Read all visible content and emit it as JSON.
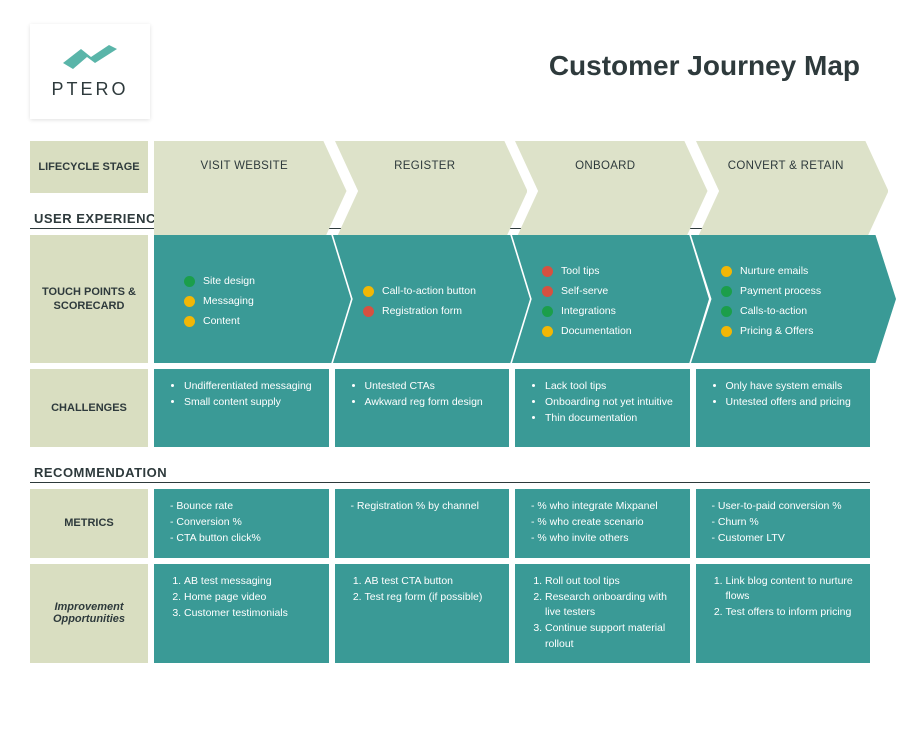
{
  "colors": {
    "bg": "#ffffff",
    "text": "#2e3a3c",
    "label_bg": "#d9dec1",
    "stage_bg": "#dde2c9",
    "teal": "#3a9a96",
    "teal_dark": "#2f8682",
    "dot_green": "#1b9e4b",
    "dot_yellow": "#f2b705",
    "dot_red": "#d65141",
    "logo_teal": "#5ab5a9"
  },
  "logo_text": "PTERO",
  "title": "Customer Journey Map",
  "lifecycle_label": "LIFECYCLE STAGE",
  "stages": [
    "VISIT WEBSITE",
    "REGISTER",
    "ONBOARD",
    "CONVERT & RETAIN"
  ],
  "sections": {
    "ux": "USER EXPERIENCE",
    "rec": "RECOMMENDATION"
  },
  "touchpoints": {
    "label": "TOUCH POINTS & SCORECARD",
    "cols": [
      [
        {
          "c": "green",
          "t": "Site design"
        },
        {
          "c": "yellow",
          "t": "Messaging"
        },
        {
          "c": "yellow",
          "t": "Content"
        }
      ],
      [
        {
          "c": "yellow",
          "t": "Call-to-action button"
        },
        {
          "c": "red",
          "t": "Registration form"
        }
      ],
      [
        {
          "c": "red",
          "t": "Tool tips"
        },
        {
          "c": "red",
          "t": "Self-serve"
        },
        {
          "c": "green",
          "t": "Integrations"
        },
        {
          "c": "yellow",
          "t": "Documentation"
        }
      ],
      [
        {
          "c": "yellow",
          "t": "Nurture emails"
        },
        {
          "c": "green",
          "t": "Payment process"
        },
        {
          "c": "green",
          "t": "Calls-to-action"
        },
        {
          "c": "yellow",
          "t": "Pricing & Offers"
        }
      ]
    ]
  },
  "challenges": {
    "label": "CHALLENGES",
    "cols": [
      [
        "Undifferentiated messaging",
        "Small content supply"
      ],
      [
        "Untested CTAs",
        "Awkward reg form design"
      ],
      [
        "Lack tool tips",
        "Onboarding not yet intuitive",
        "Thin documentation"
      ],
      [
        "Only have system emails",
        "Untested offers and pricing"
      ]
    ]
  },
  "metrics": {
    "label": "METRICS",
    "cols": [
      [
        "Bounce rate",
        "Conversion %",
        "CTA button click%"
      ],
      [
        "Registration % by channel"
      ],
      [
        "% who integrate Mixpanel",
        "% who create scenario",
        "% who invite others"
      ],
      [
        "User-to-paid conversion %",
        "Churn %",
        "Customer LTV"
      ]
    ]
  },
  "improv": {
    "label": "Improvement Opportunities",
    "cols": [
      [
        "AB test messaging",
        "Home page video",
        "Customer testimonials"
      ],
      [
        "AB test CTA button",
        "Test reg form (if possible)"
      ],
      [
        "Roll out tool tips",
        "Research onboarding with live testers",
        "Continue support material rollout"
      ],
      [
        "Link blog content to nurture flows",
        "Test offers to inform pricing"
      ]
    ]
  }
}
